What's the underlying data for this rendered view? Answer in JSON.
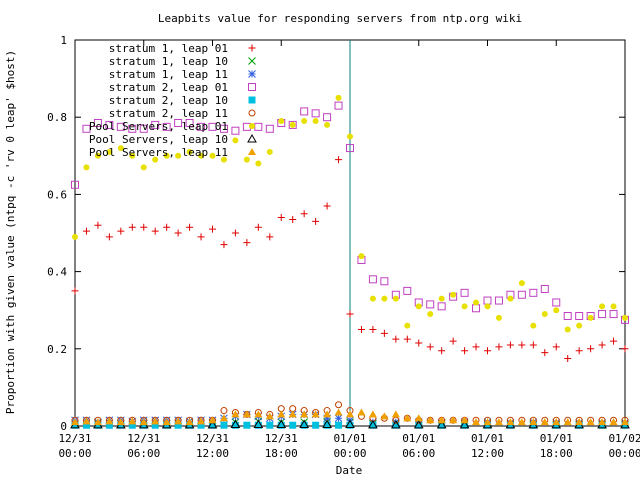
{
  "chart_data": {
    "type": "scatter",
    "title": "Leapbits value for responding servers from ntp.org wiki",
    "xlabel": "Date",
    "ylabel": "Proportion with given value (ntpq -c 'rv 0 leap' $host)",
    "ylim": [
      0,
      1
    ],
    "xlim_hours": [
      0,
      48
    ],
    "y_ticks": [
      "0",
      "0.2",
      "0.4",
      "0.6",
      "0.8",
      "1"
    ],
    "x_ticks": [
      {
        "hour": 0,
        "line1": "12/31",
        "line2": "00:00"
      },
      {
        "hour": 6,
        "line1": "12/31",
        "line2": "06:00"
      },
      {
        "hour": 12,
        "line1": "12/31",
        "line2": "12:00"
      },
      {
        "hour": 18,
        "line1": "12/31",
        "line2": "18:00"
      },
      {
        "hour": 24,
        "line1": "01/01",
        "line2": "00:00"
      },
      {
        "hour": 30,
        "line1": "01/01",
        "line2": "06:00"
      },
      {
        "hour": 36,
        "line1": "01/01",
        "line2": "12:00"
      },
      {
        "hour": 42,
        "line1": "01/01",
        "line2": "18:00"
      },
      {
        "hour": 48,
        "line1": "01/02",
        "line2": "00:00"
      }
    ],
    "vline_hour": 24,
    "legend_position": "top-left",
    "series": [
      {
        "name": "stratum 1, leap 01",
        "marker": "plus",
        "color": "#e00000",
        "x": [
          0,
          1,
          2,
          3,
          4,
          5,
          6,
          7,
          8,
          9,
          10,
          11,
          12,
          13,
          14,
          15,
          16,
          17,
          18,
          19,
          20,
          21,
          22,
          23,
          24,
          25,
          26,
          27,
          28,
          29,
          30,
          31,
          32,
          33,
          34,
          35,
          36,
          37,
          38,
          39,
          40,
          41,
          42,
          43,
          44,
          45,
          46,
          47,
          48
        ],
        "y": [
          0.35,
          0.505,
          0.52,
          0.49,
          0.505,
          0.515,
          0.515,
          0.505,
          0.515,
          0.5,
          0.515,
          0.49,
          0.51,
          0.47,
          0.5,
          0.475,
          0.515,
          0.49,
          0.54,
          0.535,
          0.55,
          0.53,
          0.57,
          0.69,
          0.29,
          0.25,
          0.25,
          0.24,
          0.225,
          0.225,
          0.215,
          0.205,
          0.195,
          0.22,
          0.195,
          0.205,
          0.195,
          0.205,
          0.21,
          0.21,
          0.21,
          0.19,
          0.205,
          0.175,
          0.195,
          0.2,
          0.21,
          0.22,
          0.2
        ]
      },
      {
        "name": "stratum 1, leap 10",
        "marker": "cross",
        "color": "#00a000",
        "x": [
          0,
          2,
          4,
          6,
          8,
          10,
          12,
          14,
          16,
          18,
          20,
          22,
          24,
          26,
          28,
          30,
          32,
          34,
          36,
          38,
          40,
          42,
          44,
          46,
          48
        ],
        "y": [
          0.005,
          0.008,
          0.005,
          0.006,
          0.005,
          0.006,
          0.008,
          0.01,
          0.012,
          0.01,
          0.01,
          0.01,
          0.01,
          0.006,
          0.006,
          0.005,
          0.005,
          0.005,
          0.005,
          0.004,
          0.004,
          0.004,
          0.004,
          0.004,
          0.004
        ]
      },
      {
        "name": "stratum 1, leap 11",
        "marker": "star",
        "color": "#3060e0",
        "x": [
          0,
          1,
          2,
          3,
          4,
          5,
          6,
          7,
          8,
          9,
          10,
          11,
          12,
          13,
          14,
          15,
          16,
          17,
          18,
          19,
          20,
          21,
          22,
          23,
          24,
          26,
          28,
          30,
          32,
          34,
          36,
          38,
          40,
          42,
          44,
          46,
          48
        ],
        "y": [
          0.015,
          0.015,
          0.01,
          0.015,
          0.015,
          0.012,
          0.015,
          0.015,
          0.015,
          0.015,
          0.012,
          0.015,
          0.015,
          0.02,
          0.025,
          0.03,
          0.025,
          0.02,
          0.025,
          0.03,
          0.03,
          0.03,
          0.02,
          0.02,
          0.015,
          0.01,
          0.01,
          0.01,
          0.008,
          0.01,
          0.01,
          0.008,
          0.01,
          0.008,
          0.008,
          0.008,
          0.008
        ]
      },
      {
        "name": "stratum 2, leap 01",
        "marker": "square-open",
        "color": "#c040c0",
        "x": [
          0,
          1,
          2,
          3,
          4,
          5,
          6,
          7,
          8,
          9,
          10,
          11,
          12,
          13,
          14,
          15,
          16,
          17,
          18,
          19,
          20,
          21,
          22,
          23,
          24,
          25,
          26,
          27,
          28,
          29,
          30,
          31,
          32,
          33,
          34,
          35,
          36,
          37,
          38,
          39,
          40,
          41,
          42,
          43,
          44,
          45,
          46,
          47,
          48
        ],
        "y": [
          0.625,
          0.77,
          0.785,
          0.78,
          0.775,
          0.77,
          0.77,
          0.78,
          0.775,
          0.785,
          0.785,
          0.775,
          0.775,
          0.77,
          0.765,
          0.775,
          0.775,
          0.77,
          0.785,
          0.78,
          0.815,
          0.81,
          0.8,
          0.83,
          0.72,
          0.43,
          0.38,
          0.375,
          0.34,
          0.35,
          0.32,
          0.315,
          0.31,
          0.335,
          0.345,
          0.305,
          0.325,
          0.325,
          0.34,
          0.34,
          0.345,
          0.355,
          0.32,
          0.285,
          0.285,
          0.285,
          0.29,
          0.29,
          0.275
        ]
      },
      {
        "name": "stratum 2, leap 10",
        "marker": "square-filled",
        "color": "#00c0e0",
        "x": [
          0,
          1,
          2,
          3,
          4,
          5,
          6,
          7,
          8,
          9,
          10,
          11,
          12,
          13,
          14,
          15,
          16,
          17,
          18,
          19,
          20,
          21,
          22,
          23,
          24,
          26,
          28,
          30,
          32,
          34,
          36,
          38,
          40,
          42,
          44,
          46,
          48
        ],
        "y": [
          0.002,
          0.002,
          0.002,
          0.002,
          0.002,
          0.002,
          0.002,
          0.002,
          0.002,
          0.002,
          0.002,
          0.002,
          0.002,
          0.002,
          0.002,
          0.002,
          0.002,
          0.002,
          0.002,
          0.002,
          0.002,
          0.002,
          0.002,
          0.002,
          0.002,
          0.002,
          0.002,
          0.002,
          0.002,
          0.002,
          0.002,
          0.002,
          0.002,
          0.002,
          0.002,
          0.002,
          0.002
        ]
      },
      {
        "name": "stratum 2, leap 11",
        "marker": "circle-open",
        "color": "#c04000",
        "x": [
          0,
          1,
          2,
          3,
          4,
          5,
          6,
          7,
          8,
          9,
          10,
          11,
          12,
          13,
          14,
          15,
          16,
          17,
          18,
          19,
          20,
          21,
          22,
          23,
          24,
          25,
          26,
          27,
          28,
          29,
          30,
          31,
          32,
          33,
          34,
          35,
          36,
          37,
          38,
          39,
          40,
          41,
          42,
          43,
          44,
          45,
          46,
          47,
          48
        ],
        "y": [
          0.015,
          0.015,
          0.015,
          0.015,
          0.015,
          0.015,
          0.015,
          0.015,
          0.015,
          0.015,
          0.015,
          0.015,
          0.015,
          0.04,
          0.035,
          0.03,
          0.035,
          0.03,
          0.045,
          0.045,
          0.04,
          0.035,
          0.04,
          0.055,
          0.04,
          0.025,
          0.02,
          0.02,
          0.015,
          0.02,
          0.015,
          0.015,
          0.015,
          0.015,
          0.015,
          0.015,
          0.015,
          0.015,
          0.015,
          0.015,
          0.015,
          0.015,
          0.015,
          0.015,
          0.015,
          0.015,
          0.015,
          0.015,
          0.015
        ]
      },
      {
        "name": "Pool Servers, leap 01",
        "marker": "circle-filled",
        "color": "#e8e000",
        "x": [
          0,
          1,
          2,
          3,
          4,
          5,
          6,
          7,
          8,
          9,
          10,
          11,
          12,
          13,
          14,
          15,
          16,
          17,
          18,
          19,
          20,
          21,
          22,
          23,
          24,
          25,
          26,
          27,
          28,
          29,
          30,
          31,
          32,
          33,
          34,
          35,
          36,
          37,
          38,
          39,
          40,
          41,
          42,
          43,
          44,
          45,
          46,
          47,
          48
        ],
        "y": [
          0.49,
          0.67,
          0.7,
          0.71,
          0.72,
          0.7,
          0.67,
          0.69,
          0.7,
          0.7,
          0.71,
          0.7,
          0.7,
          0.69,
          0.74,
          0.69,
          0.68,
          0.71,
          0.79,
          0.78,
          0.79,
          0.79,
          0.78,
          0.85,
          0.75,
          0.44,
          0.33,
          0.33,
          0.33,
          0.26,
          0.31,
          0.29,
          0.33,
          0.34,
          0.31,
          0.32,
          0.31,
          0.28,
          0.33,
          0.37,
          0.26,
          0.29,
          0.3,
          0.25,
          0.26,
          0.28,
          0.31,
          0.31,
          0.28
        ]
      },
      {
        "name": "Pool Servers, leap 10",
        "marker": "triangle-open",
        "color": "#000000",
        "x": [
          0,
          2,
          4,
          6,
          8,
          10,
          12,
          14,
          16,
          18,
          20,
          22,
          24,
          26,
          28,
          30,
          32,
          34,
          36,
          38,
          40,
          42,
          44,
          46,
          48
        ],
        "y": [
          0.003,
          0.003,
          0.003,
          0.003,
          0.003,
          0.003,
          0.003,
          0.004,
          0.004,
          0.004,
          0.004,
          0.004,
          0.004,
          0.003,
          0.003,
          0.003,
          0.003,
          0.003,
          0.003,
          0.003,
          0.003,
          0.003,
          0.003,
          0.003,
          0.003
        ]
      },
      {
        "name": "Pool Servers, leap 11",
        "marker": "triangle-filled",
        "color": "#f0a000",
        "x": [
          0,
          1,
          2,
          3,
          4,
          5,
          6,
          7,
          8,
          9,
          10,
          11,
          12,
          13,
          14,
          15,
          16,
          17,
          18,
          19,
          20,
          21,
          22,
          23,
          24,
          25,
          26,
          27,
          28,
          29,
          30,
          31,
          32,
          33,
          34,
          35,
          36,
          37,
          38,
          39,
          40,
          41,
          42,
          43,
          44,
          45,
          46,
          47,
          48
        ],
        "y": [
          0.01,
          0.012,
          0.01,
          0.012,
          0.01,
          0.012,
          0.01,
          0.012,
          0.01,
          0.012,
          0.01,
          0.012,
          0.015,
          0.02,
          0.03,
          0.03,
          0.03,
          0.025,
          0.03,
          0.03,
          0.03,
          0.03,
          0.03,
          0.035,
          0.03,
          0.035,
          0.03,
          0.025,
          0.03,
          0.02,
          0.02,
          0.015,
          0.015,
          0.015,
          0.015,
          0.01,
          0.01,
          0.01,
          0.01,
          0.01,
          0.01,
          0.01,
          0.01,
          0.01,
          0.01,
          0.01,
          0.01,
          0.01,
          0.01
        ]
      }
    ]
  }
}
